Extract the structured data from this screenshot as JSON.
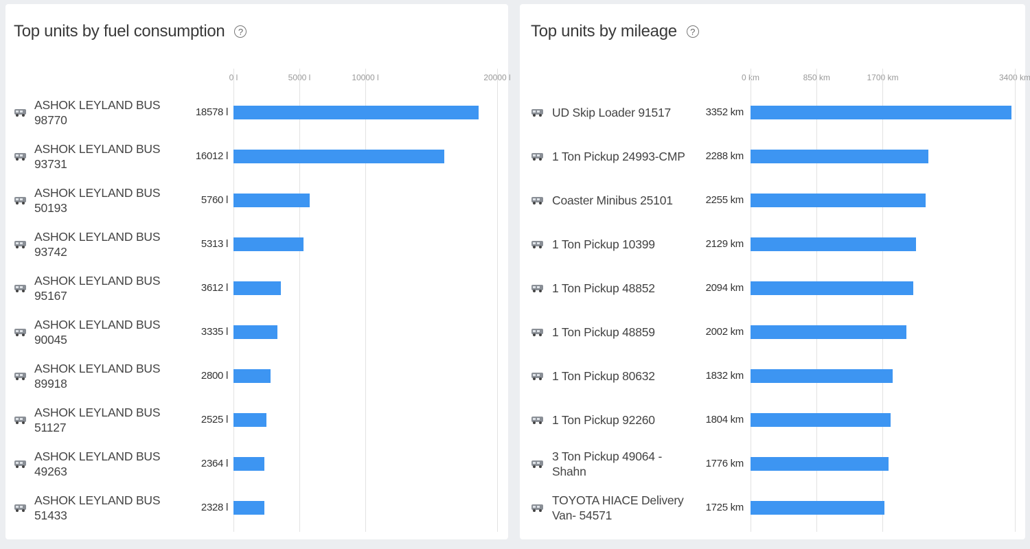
{
  "chart_data": [
    {
      "type": "bar",
      "orientation": "horizontal",
      "title": "Top units by fuel consumption",
      "info_icon": "?",
      "categories": [
        "ASHOK LEYLAND BUS 98770",
        "ASHOK LEYLAND BUS 93731",
        "ASHOK LEYLAND BUS 50193",
        "ASHOK LEYLAND BUS 93742",
        "ASHOK LEYLAND BUS 95167",
        "ASHOK LEYLAND BUS 90045",
        "ASHOK LEYLAND BUS 89918",
        "ASHOK LEYLAND BUS 51127",
        "ASHOK LEYLAND BUS 49263",
        "ASHOK LEYLAND BUS 51433"
      ],
      "values": [
        18578,
        16012,
        5760,
        5313,
        3612,
        3335,
        2800,
        2525,
        2364,
        2328
      ],
      "value_labels": [
        "18578 l",
        "16012 l",
        "5760 l",
        "5313 l",
        "3612 l",
        "3335 l",
        "2800 l",
        "2525 l",
        "2364 l",
        "2328 l"
      ],
      "color": "#3d95f2",
      "xlim": [
        0,
        20000
      ],
      "xticks": [
        {
          "value": 0,
          "label": "0 l"
        },
        {
          "value": 5000,
          "label": "5000 l"
        },
        {
          "value": 10000,
          "label": "10000 l"
        },
        {
          "value": 20000,
          "label": "20000 l"
        }
      ],
      "grid": true
    },
    {
      "type": "bar",
      "orientation": "horizontal",
      "title": "Top units by mileage",
      "info_icon": "?",
      "categories": [
        "UD Skip Loader 91517",
        "1 Ton Pickup 24993-CMP",
        "Coaster Minibus 25101",
        "1 Ton Pickup 10399",
        "1 Ton Pickup 48852",
        "1 Ton Pickup 48859",
        "1 Ton Pickup 80632",
        "1 Ton Pickup 92260",
        "3 Ton Pickup 49064 - Shahn",
        "TOYOTA HIACE Delivery Van- 54571"
      ],
      "values": [
        3352,
        2288,
        2255,
        2129,
        2094,
        2002,
        1832,
        1804,
        1776,
        1725
      ],
      "value_labels": [
        "3352 km",
        "2288 km",
        "2255 km",
        "2129 km",
        "2094 km",
        "2002 km",
        "1832 km",
        "1804 km",
        "1776 km",
        "1725 km"
      ],
      "color": "#3d95f2",
      "xlim": [
        0,
        3400
      ],
      "xticks": [
        {
          "value": 0,
          "label": "0 km"
        },
        {
          "value": 850,
          "label": "850 km"
        },
        {
          "value": 1700,
          "label": "1700 km"
        },
        {
          "value": 3400,
          "label": "3400 km"
        }
      ],
      "grid": true
    }
  ]
}
